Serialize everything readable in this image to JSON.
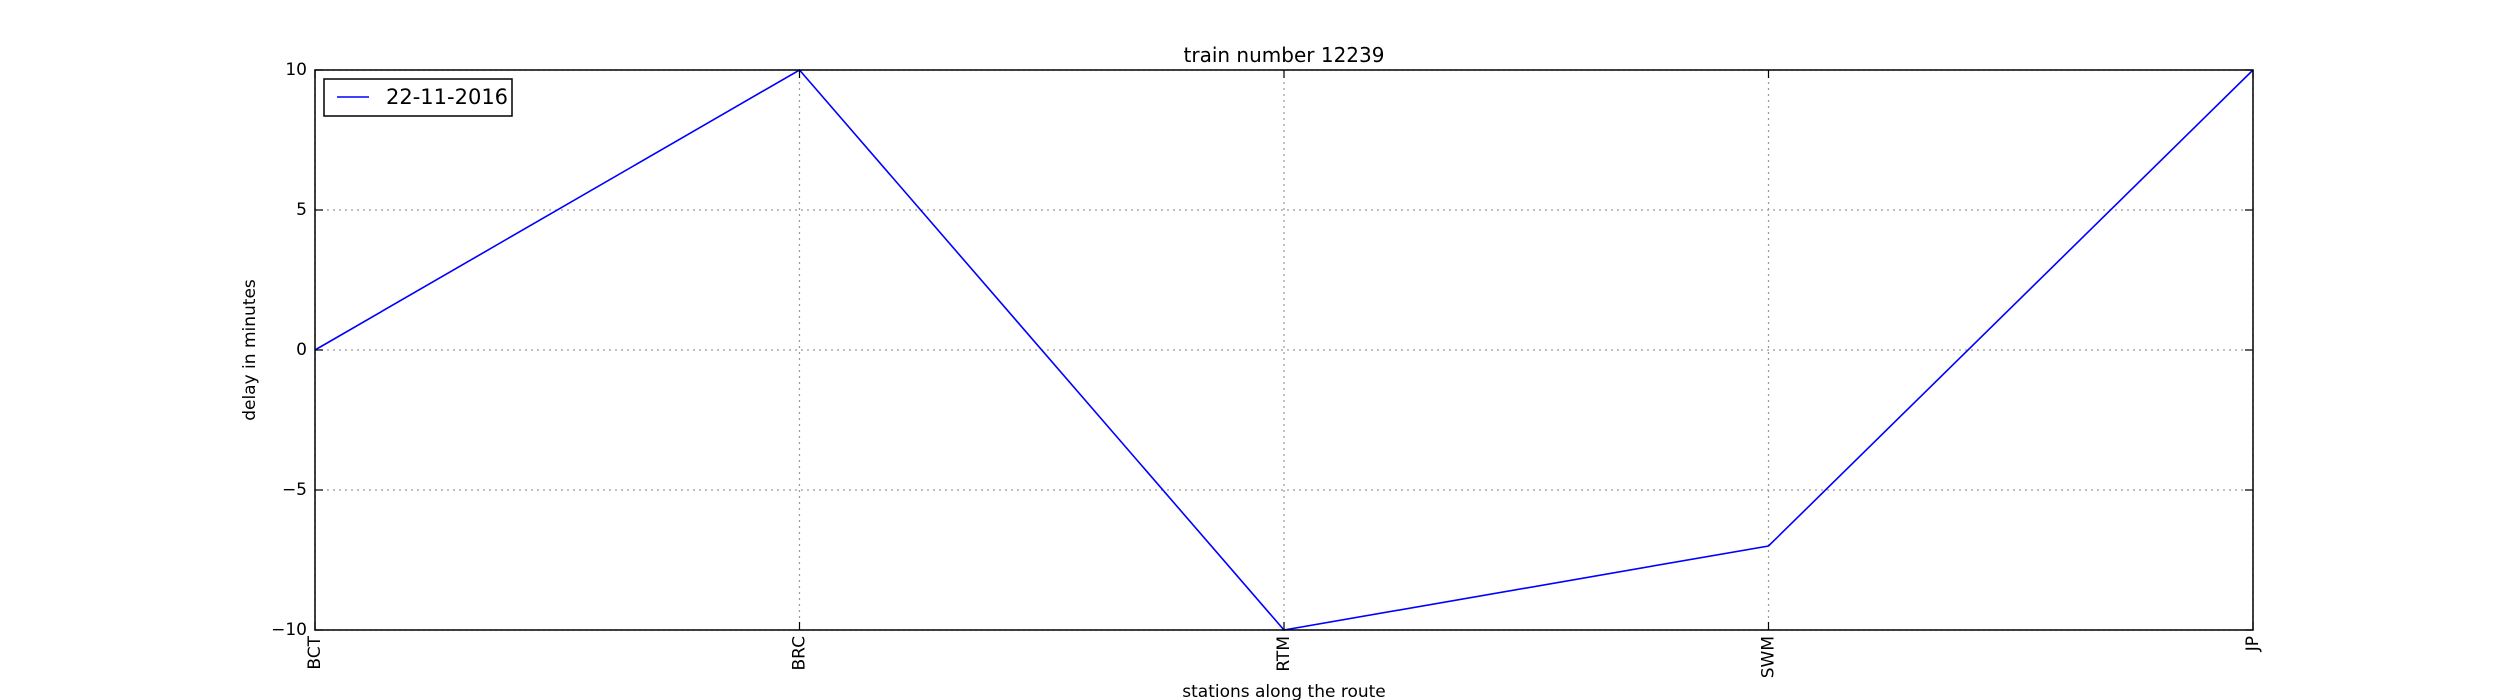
{
  "chart_data": {
    "type": "line",
    "title": "train number 12239",
    "xlabel": "stations along the route",
    "ylabel": "delay in minutes",
    "categories": [
      "BCT",
      "BRC",
      "RTM",
      "SWM",
      "JP"
    ],
    "ylim": [
      -10,
      10
    ],
    "yticks": [
      10,
      5,
      0,
      -5,
      -10
    ],
    "ytick_labels": [
      "10",
      "5",
      "0",
      "−5",
      "−10"
    ],
    "grid": true,
    "legend_position": "top-left",
    "series": [
      {
        "name": "22-11-2016",
        "color": "#0000ff",
        "values": [
          0,
          10,
          -10,
          -7,
          10
        ]
      }
    ]
  }
}
